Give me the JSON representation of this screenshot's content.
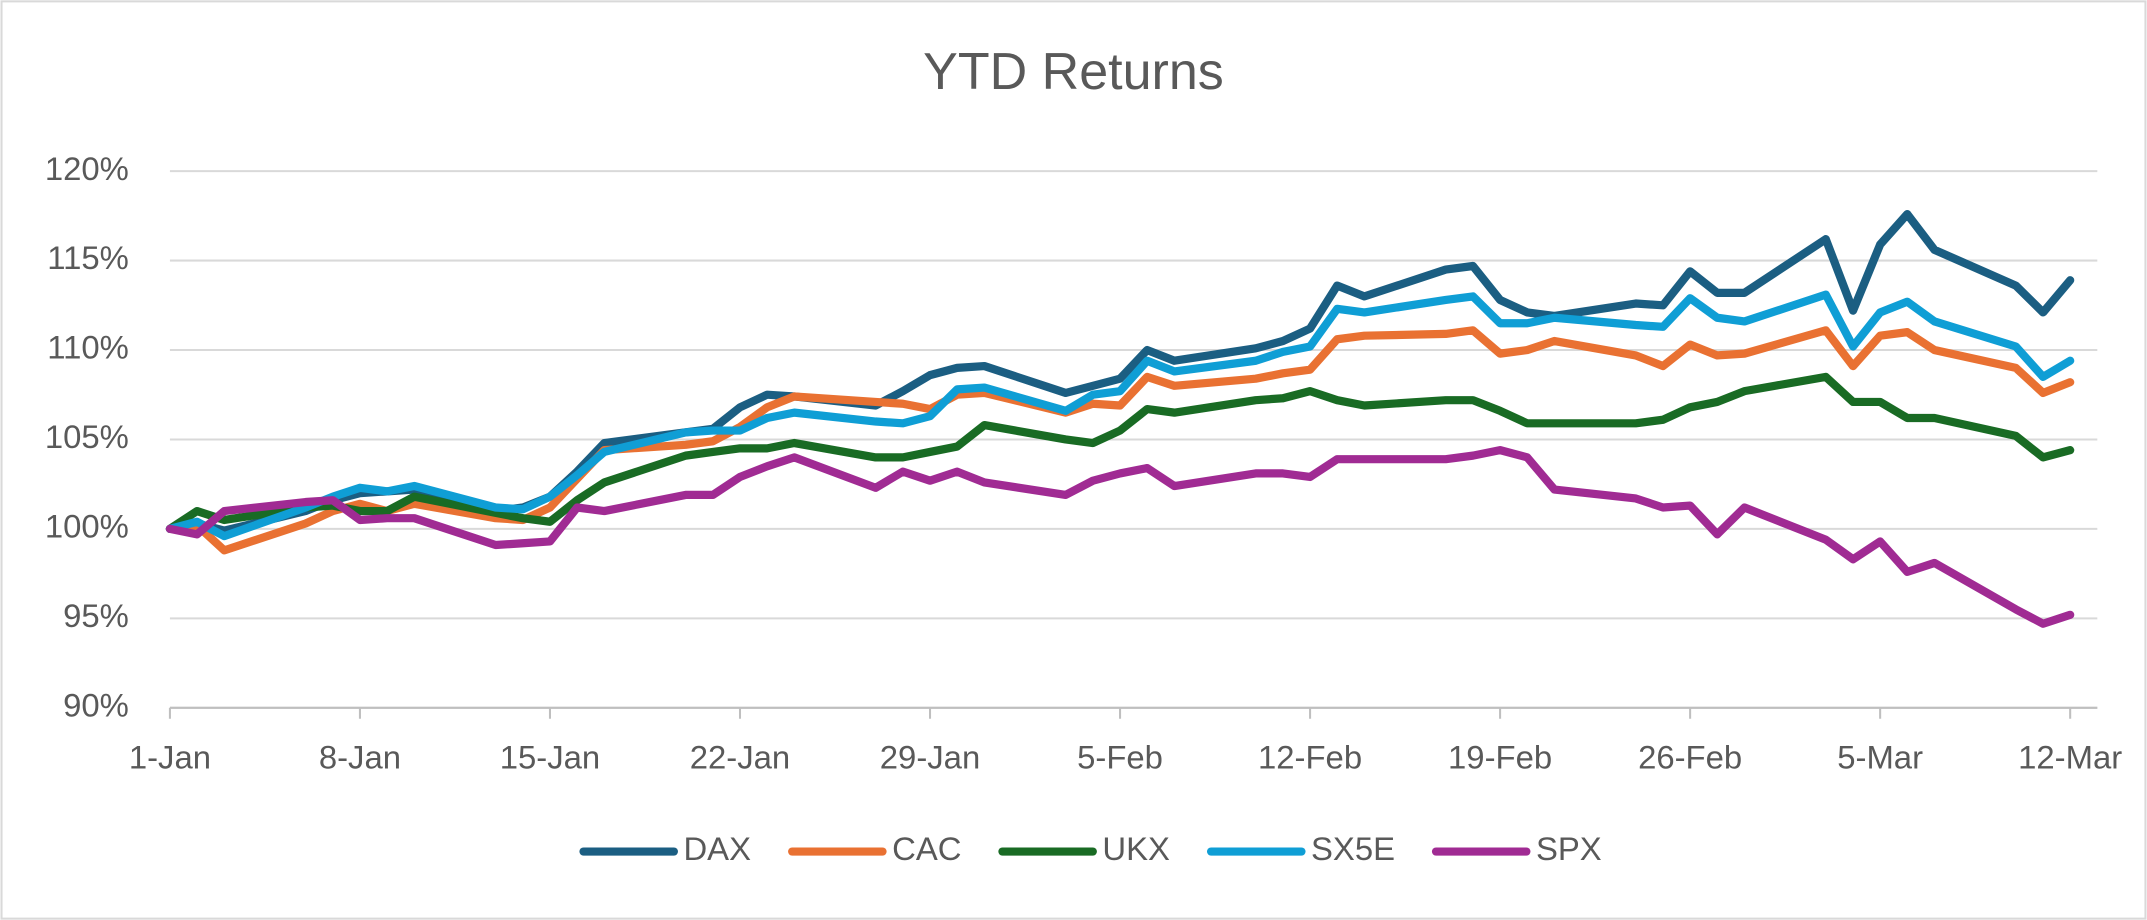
{
  "chart_data": {
    "type": "line",
    "title": "YTD Returns",
    "x": [
      "1-Jan",
      "2-Jan",
      "3-Jan",
      "6-Jan",
      "7-Jan",
      "8-Jan",
      "9-Jan",
      "10-Jan",
      "13-Jan",
      "14-Jan",
      "15-Jan",
      "16-Jan",
      "17-Jan",
      "20-Jan",
      "21-Jan",
      "22-Jan",
      "23-Jan",
      "24-Jan",
      "27-Jan",
      "28-Jan",
      "29-Jan",
      "30-Jan",
      "31-Jan",
      "3-Feb",
      "4-Feb",
      "5-Feb",
      "6-Feb",
      "7-Feb",
      "10-Feb",
      "11-Feb",
      "12-Feb",
      "13-Feb",
      "14-Feb",
      "17-Feb",
      "18-Feb",
      "19-Feb",
      "20-Feb",
      "21-Feb",
      "24-Feb",
      "25-Feb",
      "26-Feb",
      "27-Feb",
      "28-Feb",
      "3-Mar",
      "4-Mar",
      "5-Mar",
      "6-Mar",
      "7-Mar",
      "10-Mar",
      "11-Mar",
      "12-Mar"
    ],
    "series": [
      {
        "name": "DAX",
        "color": "#1b5e82",
        "values": [
          100,
          100.3,
          99.9,
          101.0,
          101.6,
          102.0,
          102.1,
          102.2,
          101.0,
          101.2,
          101.8,
          103.2,
          104.8,
          105.4,
          105.6,
          106.8,
          107.5,
          107.4,
          106.9,
          107.7,
          108.6,
          109.0,
          109.1,
          107.6,
          108.0,
          108.4,
          110.0,
          109.4,
          110.1,
          110.5,
          111.2,
          113.6,
          113.0,
          114.5,
          114.7,
          112.8,
          112.1,
          111.9,
          112.6,
          112.5,
          114.4,
          113.2,
          113.2,
          116.2,
          112.2,
          115.9,
          117.6,
          115.6,
          113.6,
          112.1,
          113.9
        ]
      },
      {
        "name": "CAC",
        "color": "#e97132",
        "values": [
          100,
          100.2,
          98.8,
          100.3,
          101.0,
          101.4,
          101.0,
          101.4,
          100.6,
          100.5,
          101.2,
          102.8,
          104.4,
          104.7,
          104.9,
          105.7,
          106.8,
          107.4,
          107.1,
          107.0,
          106.7,
          107.5,
          107.6,
          106.5,
          107.0,
          106.9,
          108.5,
          108.0,
          108.4,
          108.7,
          108.9,
          110.6,
          110.8,
          110.9,
          111.1,
          109.8,
          110.0,
          110.5,
          109.7,
          109.1,
          110.3,
          109.7,
          109.8,
          111.1,
          109.1,
          110.8,
          111.0,
          110.0,
          109.0,
          107.6,
          108.2
        ]
      },
      {
        "name": "UKX",
        "color": "#196b24",
        "values": [
          100,
          101.0,
          100.5,
          101.2,
          101.3,
          101.0,
          101.0,
          101.8,
          100.9,
          100.6,
          100.4,
          101.6,
          102.6,
          104.1,
          104.3,
          104.5,
          104.5,
          104.8,
          104.0,
          104.0,
          104.3,
          104.6,
          105.8,
          105.0,
          104.8,
          105.5,
          106.7,
          106.5,
          107.2,
          107.3,
          107.7,
          107.2,
          106.9,
          107.2,
          107.2,
          106.6,
          105.9,
          105.9,
          105.9,
          106.1,
          106.8,
          107.1,
          107.7,
          108.5,
          107.1,
          107.1,
          106.2,
          106.2,
          105.2,
          104.0,
          104.4
        ]
      },
      {
        "name": "SX5E",
        "color": "#0f9ed5",
        "values": [
          100,
          100.4,
          99.6,
          101.2,
          101.8,
          102.3,
          102.1,
          102.4,
          101.2,
          101.1,
          101.8,
          103.0,
          104.3,
          105.4,
          105.5,
          105.5,
          106.2,
          106.5,
          106.0,
          105.9,
          106.3,
          107.8,
          107.9,
          106.6,
          107.5,
          107.7,
          109.4,
          108.8,
          109.4,
          109.9,
          110.2,
          112.3,
          112.1,
          112.8,
          113.0,
          111.5,
          111.5,
          111.8,
          111.4,
          111.3,
          112.9,
          111.8,
          111.6,
          113.1,
          110.2,
          112.1,
          112.7,
          111.6,
          110.2,
          108.5,
          109.4
        ]
      },
      {
        "name": "SPX",
        "color": "#a02b93",
        "values": [
          100,
          99.7,
          101.0,
          101.5,
          101.6,
          100.5,
          100.6,
          100.6,
          99.1,
          99.2,
          99.3,
          101.2,
          101.0,
          101.9,
          101.9,
          102.9,
          103.5,
          104.0,
          102.3,
          103.2,
          102.7,
          103.2,
          102.6,
          101.9,
          102.7,
          103.1,
          103.4,
          102.4,
          103.1,
          103.1,
          102.9,
          103.9,
          103.9,
          103.9,
          104.1,
          104.4,
          104.0,
          102.2,
          101.7,
          101.2,
          101.3,
          99.7,
          101.2,
          99.4,
          98.3,
          99.3,
          97.6,
          98.1,
          95.5,
          94.7,
          95.2
        ]
      }
    ],
    "xlim": [
      "1-Jan",
      "13-Mar"
    ],
    "xticks": [
      "1-Jan",
      "8-Jan",
      "15-Jan",
      "22-Jan",
      "29-Jan",
      "5-Feb",
      "12-Feb",
      "19-Feb",
      "26-Feb",
      "5-Mar",
      "12-Mar"
    ],
    "ylim": [
      90,
      120
    ],
    "yticks": [
      {
        "value": 90,
        "label": "90%"
      },
      {
        "value": 95,
        "label": "95%"
      },
      {
        "value": 100,
        "label": "100%"
      },
      {
        "value": 105,
        "label": "105%"
      },
      {
        "value": 110,
        "label": "110%"
      },
      {
        "value": 115,
        "label": "115%"
      },
      {
        "value": 120,
        "label": "120%"
      }
    ],
    "grid": true,
    "legend": "bottom"
  }
}
